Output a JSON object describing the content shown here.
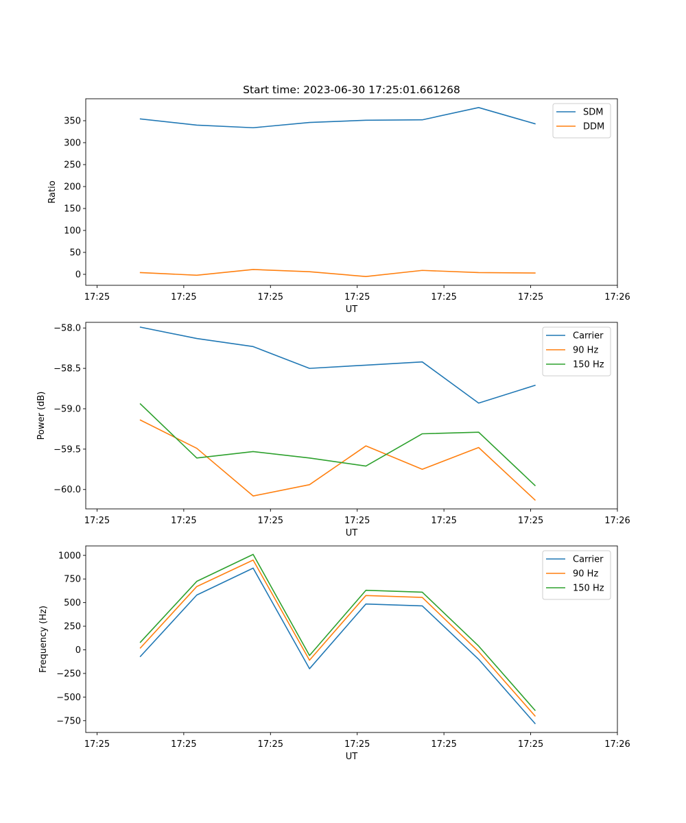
{
  "figure": {
    "title": "Start time: 2023-06-30 17:25:01.661268"
  },
  "colors": {
    "blue": "#1f77b4",
    "orange": "#ff7f0e",
    "green": "#2ca02c"
  },
  "chart_data": [
    {
      "type": "line",
      "title": "Start time: 2023-06-30 17:25:01.661268",
      "xlabel": "UT",
      "ylabel": "Ratio",
      "x_tick_labels": [
        "17:25",
        "17:25",
        "17:25",
        "17:25",
        "17:25",
        "17:25",
        "17:26"
      ],
      "x_ticks": [
        0,
        1,
        2,
        3,
        4,
        5,
        6
      ],
      "x": [
        0.5,
        1.15,
        1.8,
        2.45,
        3.1,
        3.75,
        4.4,
        5.05
      ],
      "xlim": [
        -0.13,
        6.0
      ],
      "y_ticks": [
        0,
        50,
        100,
        150,
        200,
        250,
        300,
        350
      ],
      "ylim": [
        -25,
        400
      ],
      "grid": false,
      "legend_position": "top-right",
      "series": [
        {
          "name": "SDM",
          "color": "#1f77b4",
          "values": [
            354,
            340,
            334,
            346,
            351,
            352,
            380,
            343
          ]
        },
        {
          "name": "DDM",
          "color": "#ff7f0e",
          "values": [
            4,
            -2,
            11,
            6,
            -5,
            9,
            4,
            3
          ]
        }
      ]
    },
    {
      "type": "line",
      "xlabel": "UT",
      "ylabel": "Power (dB)",
      "x_tick_labels": [
        "17:25",
        "17:25",
        "17:25",
        "17:25",
        "17:25",
        "17:25",
        "17:26"
      ],
      "x_ticks": [
        0,
        1,
        2,
        3,
        4,
        5,
        6
      ],
      "x": [
        0.5,
        1.15,
        1.8,
        2.45,
        3.1,
        3.75,
        4.4,
        5.05
      ],
      "xlim": [
        -0.13,
        6.0
      ],
      "y_ticks": [
        -60.0,
        -59.5,
        -59.0,
        -58.5,
        -58.0
      ],
      "y_tick_labels": [
        "−60.0",
        "−59.5",
        "−59.0",
        "−58.5",
        "−58.0"
      ],
      "ylim": [
        -60.24,
        -57.93
      ],
      "grid": false,
      "legend_position": "top-right",
      "series": [
        {
          "name": "Carrier",
          "color": "#1f77b4",
          "values": [
            -57.99,
            -58.13,
            -58.23,
            -58.5,
            -58.46,
            -58.42,
            -58.93,
            -58.71
          ]
        },
        {
          "name": "90 Hz",
          "color": "#ff7f0e",
          "values": [
            -59.14,
            -59.49,
            -60.08,
            -59.94,
            -59.46,
            -59.75,
            -59.48,
            -60.13
          ]
        },
        {
          "name": "150 Hz",
          "color": "#2ca02c",
          "values": [
            -58.94,
            -59.61,
            -59.53,
            -59.61,
            -59.71,
            -59.31,
            -59.29,
            -59.95
          ]
        }
      ]
    },
    {
      "type": "line",
      "xlabel": "UT",
      "ylabel": "Frequency (Hz)",
      "x_tick_labels": [
        "17:25",
        "17:25",
        "17:25",
        "17:25",
        "17:25",
        "17:25",
        "17:26"
      ],
      "x_ticks": [
        0,
        1,
        2,
        3,
        4,
        5,
        6
      ],
      "x": [
        0.5,
        1.15,
        1.8,
        2.45,
        3.1,
        3.75,
        4.4,
        5.05
      ],
      "xlim": [
        -0.13,
        6.0
      ],
      "y_ticks": [
        -750,
        -500,
        -250,
        0,
        250,
        500,
        750,
        1000
      ],
      "y_tick_labels": [
        "−750",
        "−500",
        "−250",
        "0",
        "250",
        "500",
        "750",
        "1000"
      ],
      "ylim": [
        -875,
        1100
      ],
      "grid": false,
      "legend_position": "top-right",
      "series": [
        {
          "name": "Carrier",
          "color": "#1f77b4",
          "values": [
            -70,
            580,
            865,
            -200,
            485,
            465,
            -100,
            -780
          ]
        },
        {
          "name": "90 Hz",
          "color": "#ff7f0e",
          "values": [
            20,
            670,
            950,
            -110,
            575,
            555,
            -20,
            -700
          ]
        },
        {
          "name": "150 Hz",
          "color": "#2ca02c",
          "values": [
            80,
            725,
            1010,
            -60,
            630,
            610,
            40,
            -640
          ]
        }
      ]
    }
  ]
}
